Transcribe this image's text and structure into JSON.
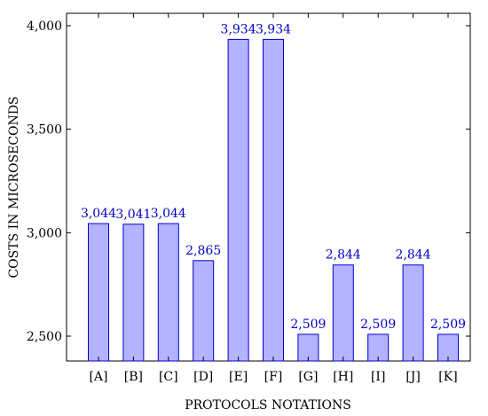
{
  "chart_data": {
    "type": "bar",
    "categories": [
      "[A]",
      "[B]",
      "[C]",
      "[D]",
      "[E]",
      "[F]",
      "[G]",
      "[H]",
      "[I]",
      "[J]",
      "[K]"
    ],
    "values": [
      3044,
      3041,
      3044,
      2865,
      3934,
      3934,
      2509,
      2844,
      2509,
      2844,
      2509
    ],
    "data_labels": [
      "3,044",
      "3,041",
      "3,044",
      "2,865",
      "3,934",
      "3,934",
      "2,509",
      "2,844",
      "2,509",
      "2,844",
      "2,509"
    ],
    "xlabel": "PROTOCOLS NOTATIONS",
    "ylabel": "COSTS IN MICROSECONDS",
    "ylim": [
      2380,
      4060
    ],
    "yticks": [
      2500,
      3000,
      3500,
      4000
    ],
    "ytick_labels": [
      "2,500",
      "3,000",
      "3,500",
      "4,000"
    ],
    "grid": false,
    "legend": "none",
    "colors": {
      "bar_fill": "#b3b3ff",
      "bar_stroke": "#0000cc",
      "label_text": "#0000cc",
      "axis": "#000000"
    }
  }
}
